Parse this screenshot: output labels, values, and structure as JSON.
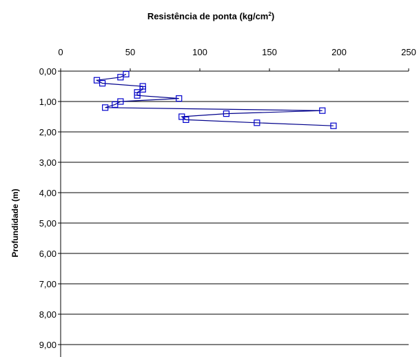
{
  "chart_data": {
    "type": "line",
    "title": "Resistência de ponta (kg/cm",
    "title_superscript": "2",
    "title_suffix": ")",
    "xlabel": "",
    "ylabel": "Profundidade (m)",
    "xlim": [
      0,
      250
    ],
    "ylim": [
      0,
      10
    ],
    "x_axis_position": "top",
    "y_inverted": true,
    "grid": "horizontal",
    "legend": "none",
    "x_ticks": [
      "0",
      "50",
      "100",
      "150",
      "200",
      "250"
    ],
    "y_ticks": [
      "0,00",
      "1,00",
      "2,00",
      "3,00",
      "4,00",
      "5,00",
      "6,00",
      "7,00",
      "8,00",
      "9,00"
    ],
    "series": [
      {
        "color": "#00008b",
        "marker": "square",
        "x": [
          47,
          43,
          26,
          30,
          59,
          59,
          55,
          55,
          85,
          43,
          39,
          32,
          188,
          119,
          87,
          90,
          141,
          196
        ],
        "y": [
          0.1,
          0.2,
          0.3,
          0.4,
          0.5,
          0.6,
          0.7,
          0.8,
          0.9,
          1.0,
          1.1,
          1.2,
          1.3,
          1.4,
          1.5,
          1.6,
          1.7,
          1.8
        ]
      }
    ]
  }
}
